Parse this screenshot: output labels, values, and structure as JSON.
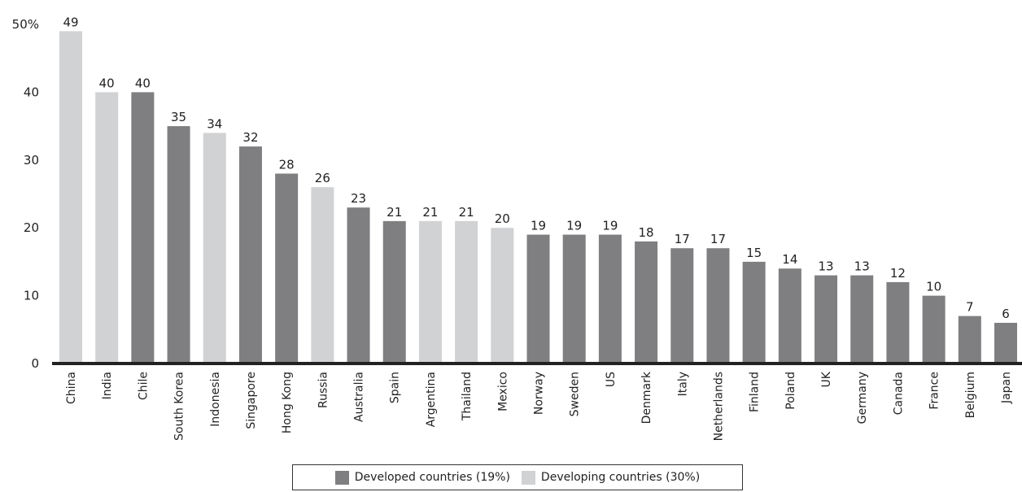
{
  "chart_data": {
    "type": "bar",
    "categories": [
      "China",
      "India",
      "Chile",
      "South Korea",
      "Indonesia",
      "Singapore",
      "Hong Kong",
      "Russia",
      "Australia",
      "Spain",
      "Argentina",
      "Thailand",
      "Mexico",
      "Norway",
      "Sweden",
      "US",
      "Denmark",
      "Italy",
      "Netherlands",
      "Finland",
      "Poland",
      "UK",
      "Germany",
      "Canada",
      "France",
      "Belgium",
      "Japan"
    ],
    "values": [
      49,
      40,
      40,
      35,
      34,
      32,
      28,
      26,
      23,
      21,
      21,
      21,
      20,
      19,
      19,
      19,
      18,
      17,
      17,
      15,
      14,
      13,
      13,
      12,
      10,
      7,
      6
    ],
    "groups": [
      "developing",
      "developing",
      "developed",
      "developed",
      "developing",
      "developed",
      "developed",
      "developing",
      "developed",
      "developed",
      "developing",
      "developing",
      "developing",
      "developed",
      "developed",
      "developed",
      "developed",
      "developed",
      "developed",
      "developed",
      "developed",
      "developed",
      "developed",
      "developed",
      "developed",
      "developed",
      "developed"
    ],
    "ylim": [
      0,
      50
    ],
    "yticks": [
      0,
      10,
      20,
      30,
      40,
      50
    ],
    "ytick_labels": [
      "0",
      "10",
      "20",
      "30",
      "40",
      "50%"
    ],
    "grid": false,
    "legend_position": "bottom-center",
    "colors": {
      "developed": "#7f7f82",
      "developing": "#d1d2d4",
      "axis": "#222222"
    }
  },
  "legend": {
    "developed_label": "Developed countries (19%)",
    "developing_label": "Developing countries (30%)"
  }
}
